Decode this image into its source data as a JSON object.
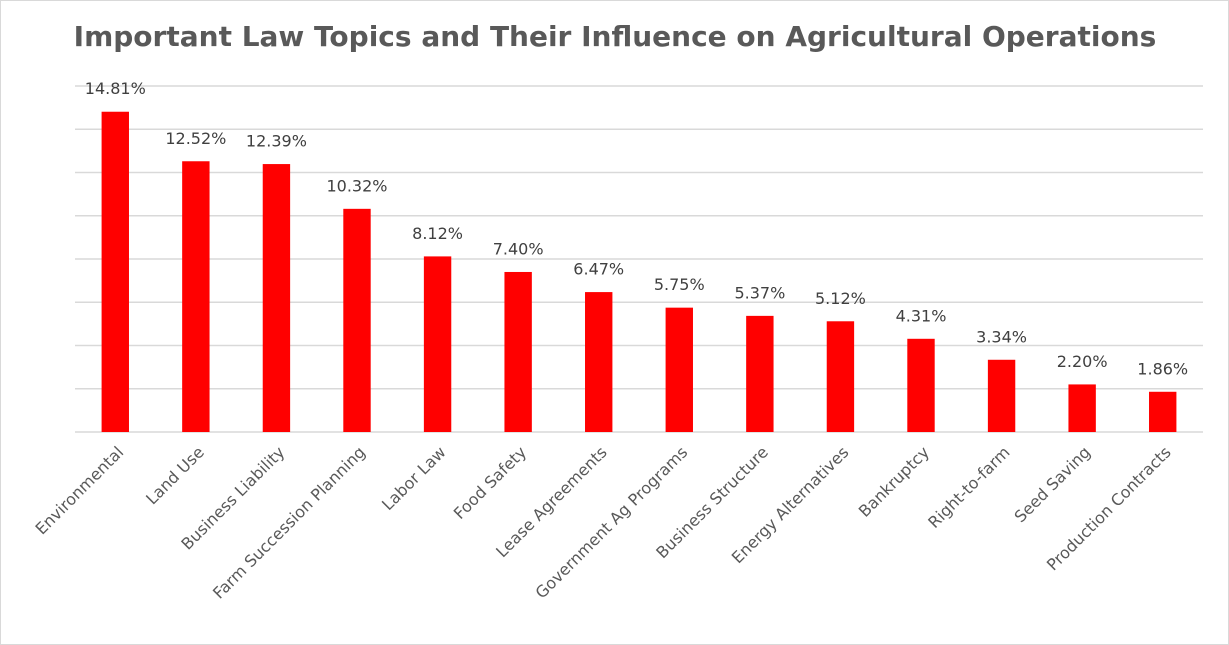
{
  "chart_data": {
    "type": "bar",
    "title": "Important Law Topics and Their Influence on Agricultural Operations",
    "categories": [
      "Environmental",
      "Land Use",
      "Business Liability",
      "Farm Succession Planning",
      "Labor Law",
      "Food Safety",
      "Lease Agreements",
      "Government Ag Programs",
      "Business Structure",
      "Energy Alternatives",
      "Bankruptcy",
      "Right-to-farm",
      "Seed Saving",
      "Production Contracts"
    ],
    "values": [
      14.81,
      12.52,
      12.39,
      10.32,
      8.12,
      7.4,
      6.47,
      5.75,
      5.37,
      5.12,
      4.31,
      3.34,
      2.2,
      1.86
    ],
    "value_labels": [
      "14.81%",
      "12.52%",
      "12.39%",
      "10.32%",
      "8.12%",
      "7.40%",
      "6.47%",
      "5.75%",
      "5.37%",
      "5.12%",
      "4.31%",
      "3.34%",
      "2.20%",
      "1.86%"
    ],
    "color": "#ff0000",
    "ylim": [
      0,
      16
    ],
    "yticks": [
      0,
      2,
      4,
      6,
      8,
      10,
      12,
      14,
      16
    ],
    "grid": true
  }
}
